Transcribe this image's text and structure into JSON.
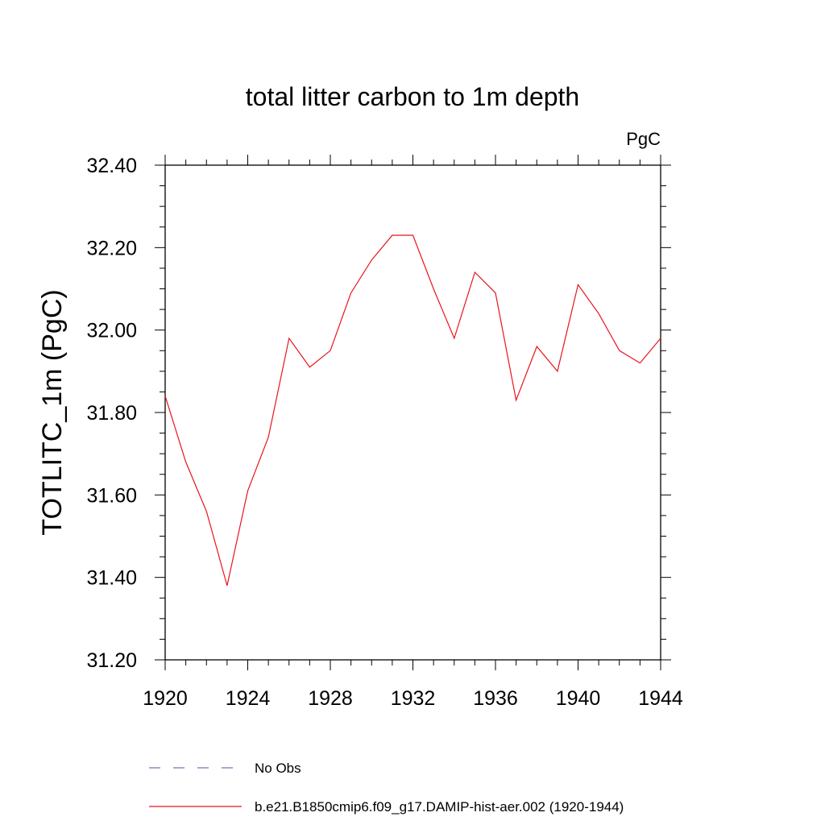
{
  "chart_data": {
    "type": "line",
    "title": "total litter carbon to 1m depth",
    "units": "PgC",
    "ylabel": "TOTLITC_1m  (PgC)",
    "xlabel": "",
    "xlim": [
      1920,
      1944
    ],
    "ylim": [
      31.2,
      32.4
    ],
    "x_ticks": [
      "1920",
      "1924",
      "1928",
      "1932",
      "1936",
      "1940",
      "1944"
    ],
    "y_ticks": [
      "31.20",
      "31.40",
      "31.60",
      "31.80",
      "32.00",
      "32.20",
      "32.40"
    ],
    "grid": false,
    "legend_position": "bottom",
    "series": [
      {
        "name": "No Obs",
        "color": "#7b6fb8",
        "style": "dashed",
        "x": [],
        "y": []
      },
      {
        "name": "b.e21.B1850cmip6.f09_g17.DAMIP-hist-aer.002 (1920-1944)",
        "color": "#e8141c",
        "style": "solid",
        "x": [
          1920,
          1921,
          1922,
          1923,
          1924,
          1925,
          1926,
          1927,
          1928,
          1929,
          1930,
          1931,
          1932,
          1933,
          1934,
          1935,
          1936,
          1937,
          1938,
          1939,
          1940,
          1941,
          1942,
          1943,
          1944
        ],
        "y": [
          31.84,
          31.68,
          31.56,
          31.38,
          31.61,
          31.74,
          31.98,
          31.91,
          31.95,
          32.09,
          32.17,
          32.23,
          32.23,
          32.1,
          31.98,
          32.14,
          32.09,
          31.83,
          31.96,
          31.9,
          32.11,
          32.04,
          31.95,
          31.92,
          31.98
        ]
      }
    ]
  }
}
